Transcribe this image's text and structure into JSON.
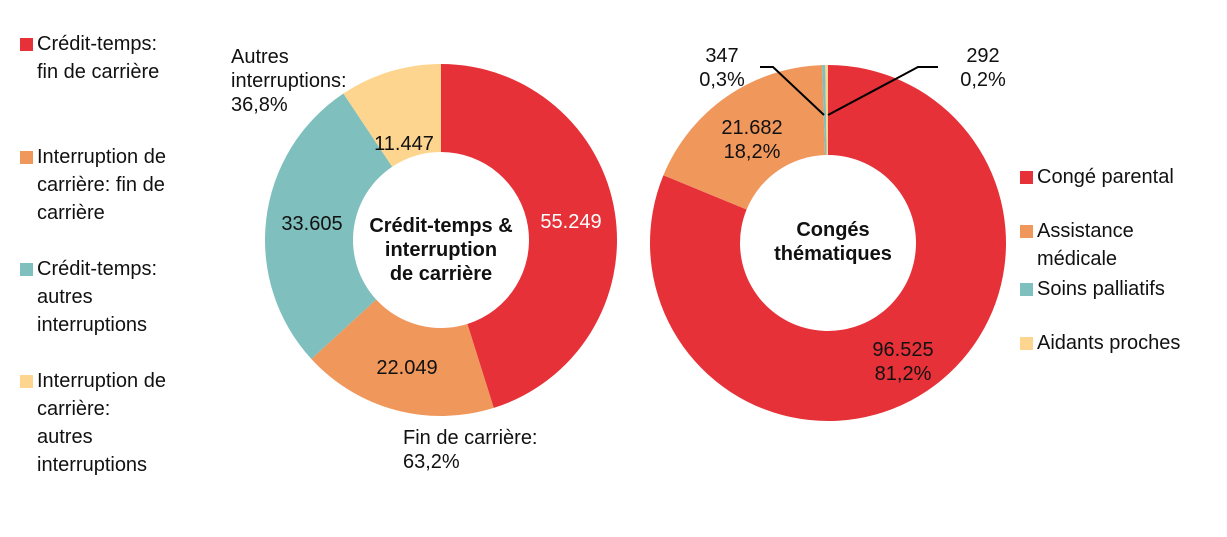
{
  "chart_data": [
    {
      "type": "pie",
      "donut": true,
      "center_label": [
        "Crédit-temps &",
        "interruption",
        "de carrière"
      ],
      "categories": [
        "Crédit-temps: fin de carrière",
        "Interruption de carrière: fin de carrière",
        "Crédit-temps: autres interruptions",
        "Interruption de carrière: autres interruptions"
      ],
      "values": [
        55249,
        22049,
        33605,
        11447
      ],
      "data_labels": [
        "55.249",
        "22.049",
        "33.605",
        "11.447"
      ],
      "annotations": [
        {
          "lines": [
            "Autres",
            "interruptions:",
            "36,8%"
          ]
        },
        {
          "lines": [
            "Fin de carrière:",
            "63,2%"
          ]
        }
      ],
      "legend_labels": [
        [
          "Crédit-temps:",
          "fin de carrière"
        ],
        [
          "Interruption de",
          "carrière: fin de",
          "carrière"
        ],
        [
          "Crédit-temps:",
          "autres",
          "interruptions"
        ],
        [
          "Interruption de",
          "carrière:",
          "autres",
          "interruptions"
        ]
      ],
      "legend": "left",
      "colors": [
        "#e63138",
        "#f0975c",
        "#7fbfbe",
        "#fdd58e"
      ]
    },
    {
      "type": "pie",
      "donut": true,
      "center_label": [
        "Congés",
        "thématiques"
      ],
      "categories": [
        "Congé parental",
        "Assistance médicale",
        "Soins palliatifs",
        "Aidants proches"
      ],
      "values": [
        96525,
        21682,
        347,
        292
      ],
      "data_labels": [
        [
          "96.525",
          "81,2%"
        ],
        [
          "21.682",
          "18,2%"
        ],
        [
          "347",
          "0,3%"
        ],
        [
          "292",
          "0,2%"
        ]
      ],
      "legend_labels": [
        [
          "Congé parental"
        ],
        [
          "Assistance",
          "médicale"
        ],
        [
          "Soins palliatifs"
        ],
        [
          "Aidants proches"
        ]
      ],
      "legend": "right",
      "colors": [
        "#e63138",
        "#f0975c",
        "#7fbfbe",
        "#fdd58e"
      ]
    }
  ]
}
